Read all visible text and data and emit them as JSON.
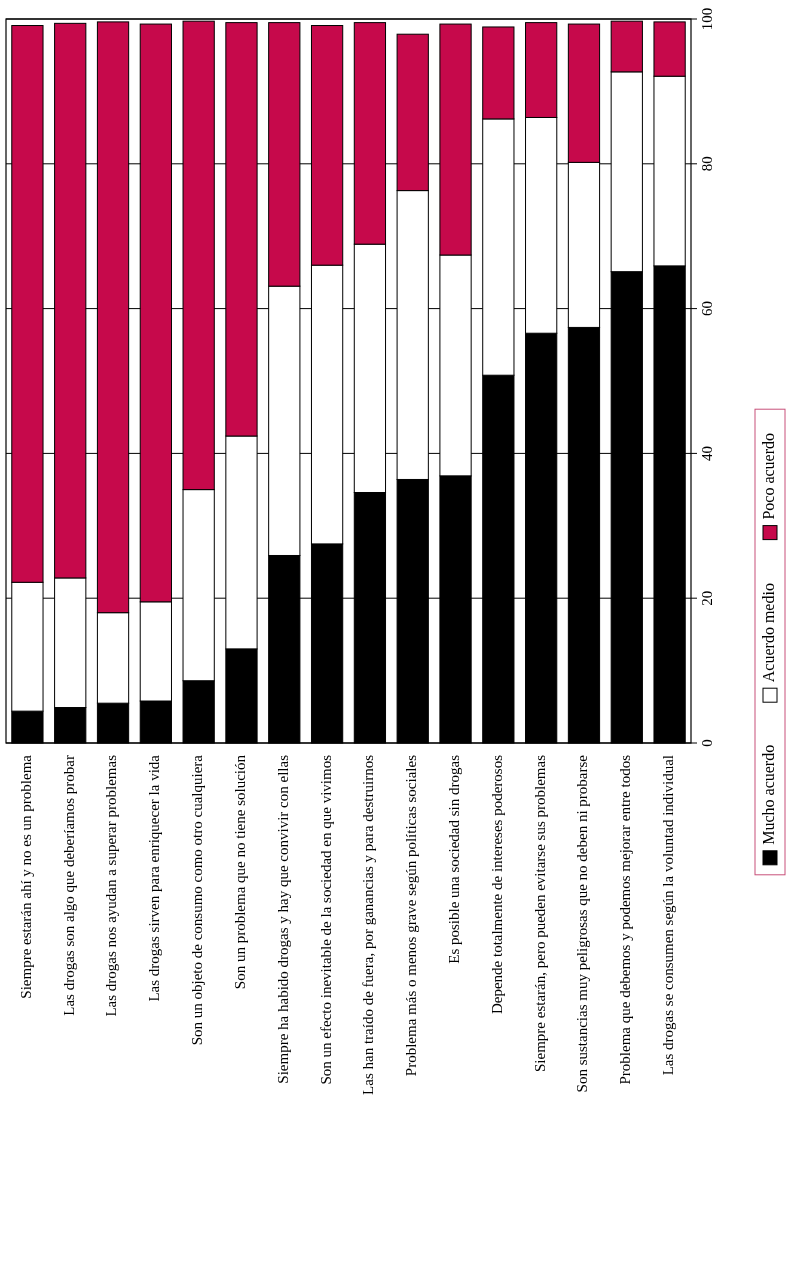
{
  "chart_data": {
    "type": "bar",
    "stacked": true,
    "categories": [
      "Siempre estarán ahí y no es un problema",
      "Las drogas son algo que deberíamos probar",
      "Las drogas nos ayudan a superar problemas",
      "Las drogas sirven para enriquecer la vida",
      "Son un objeto de consumo como otro cualquiera",
      "Son un problema que no tiene solución",
      "Siempre ha habido drogas y hay que convivir con ellas",
      "Son un efecto inevitable de la sociedad en que vivimos",
      "Las han traído de fuera, por ganancias y para destruirnos",
      "Problema más o menos grave según políticas sociales",
      "Es posible una sociedad sin drogas",
      "Depende totalmente de intereses poderosos",
      "Siempre estarán, pero pueden evitarse sus problemas",
      "Son sustancias muy peligrosas que no deben ni probarse",
      "Problema que debemos y podemos mejorar entre todos",
      "Las drogas se consumen según la voluntad individual"
    ],
    "series": [
      {
        "name": "Mucho acuerdo",
        "color": "#000000",
        "values": [
          4.4,
          4.9,
          5.5,
          5.8,
          8.6,
          13.0,
          25.9,
          27.5,
          34.6,
          36.4,
          36.9,
          50.8,
          56.6,
          57.4,
          65.1,
          65.9
        ]
      },
      {
        "name": "Acuerdo medio",
        "color": "#ffffff",
        "values": [
          17.8,
          17.9,
          12.5,
          13.7,
          26.4,
          29.4,
          37.2,
          38.5,
          34.3,
          39.9,
          30.5,
          35.4,
          29.8,
          22.8,
          27.6,
          26.2
        ]
      },
      {
        "name": "Poco acuerdo",
        "color": "#c6094b",
        "values": [
          76.9,
          76.6,
          81.6,
          79.8,
          64.7,
          57.1,
          36.4,
          33.1,
          30.6,
          21.6,
          31.9,
          12.7,
          13.1,
          19.1,
          7.0,
          7.5
        ]
      }
    ],
    "ylim": [
      0,
      100
    ],
    "yticks": [
      0,
      20,
      40,
      60,
      80,
      100
    ],
    "grid": "y",
    "legend": "right"
  }
}
